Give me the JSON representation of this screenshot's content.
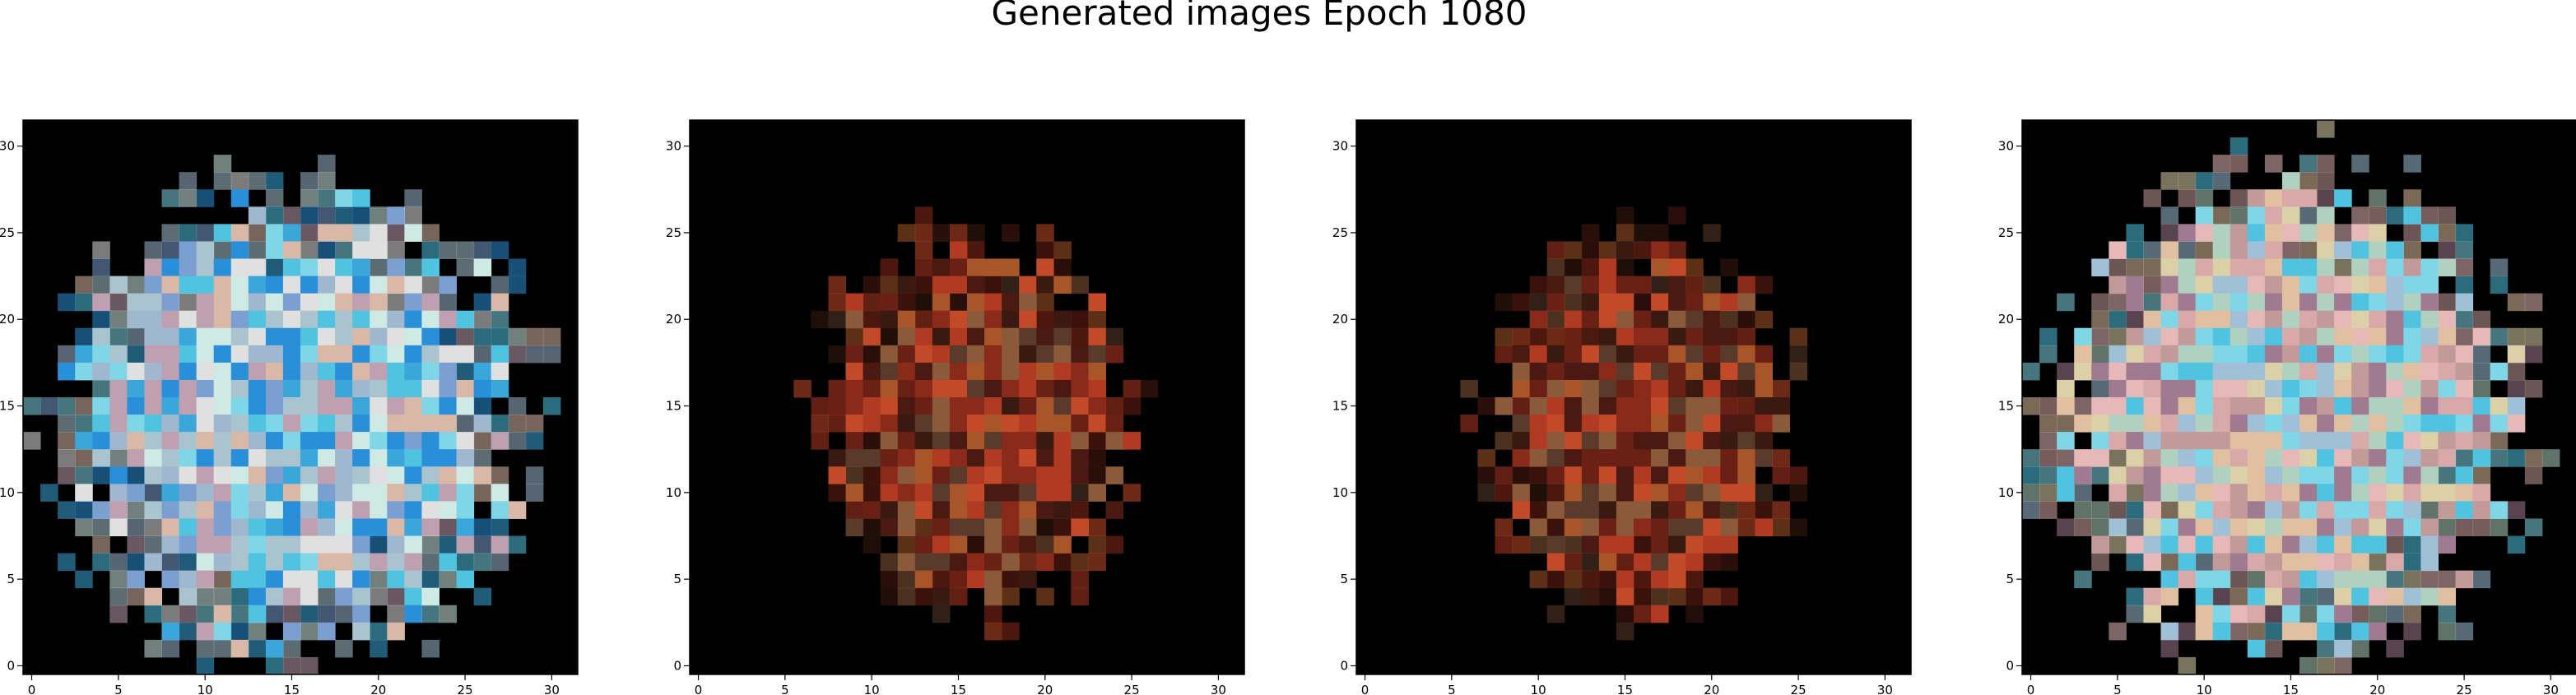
{
  "figure": {
    "title": "Generated images Epoch 1080"
  },
  "chart_data": [
    {
      "type": "heatmap",
      "title": "",
      "xlim": [
        -0.5,
        31.5
      ],
      "ylim": [
        31.5,
        -0.5
      ],
      "xticks": [
        0,
        5,
        10,
        15,
        20,
        25,
        30
      ],
      "yticks": [
        0,
        5,
        10,
        15,
        20,
        25,
        30
      ],
      "background": "#000000",
      "content_extent": {
        "x": [
          1,
          29
        ],
        "y": [
          3,
          31
        ]
      },
      "palette": [
        "#7fd6e6",
        "#a9c4cf",
        "#cfe9e4",
        "#4fc3e0",
        "#9fb8cf",
        "#d9b8a8",
        "#3aa6d9",
        "#e0e0e0",
        "#7a9fd0",
        "#bfa0b0",
        "#2a8fd9"
      ]
    },
    {
      "type": "heatmap",
      "title": "",
      "xlim": [
        -0.5,
        31.5
      ],
      "ylim": [
        31.5,
        -0.5
      ],
      "xticks": [
        0,
        5,
        10,
        15,
        20,
        25,
        30
      ],
      "yticks": [
        0,
        5,
        10,
        15,
        20,
        25,
        30
      ],
      "background": "#000000",
      "content_extent": {
        "x": [
          7,
          25
        ],
        "y": [
          6,
          28
        ]
      },
      "palette": [
        "#8a2a1a",
        "#6a2014",
        "#b03a22",
        "#4a1a12",
        "#a8552a",
        "#5a3a2a",
        "#c24a28",
        "#3a1a10",
        "#8a5a3a"
      ]
    },
    {
      "type": "heatmap",
      "title": "",
      "xlim": [
        -0.5,
        31.5
      ],
      "ylim": [
        31.5,
        -0.5
      ],
      "xticks": [
        0,
        5,
        10,
        15,
        20,
        25,
        30
      ],
      "yticks": [
        0,
        5,
        10,
        15,
        20,
        25,
        30
      ],
      "background": "#000000",
      "content_extent": {
        "x": [
          7,
          25
        ],
        "y": [
          6,
          28
        ]
      },
      "palette": [
        "#8a2a1a",
        "#6a2014",
        "#b03a22",
        "#4a1a12",
        "#a8552a",
        "#5a3a2a",
        "#c24a28",
        "#3a1a10",
        "#8a5a3a"
      ]
    },
    {
      "type": "heatmap",
      "title": "",
      "xlim": [
        -0.5,
        31.5
      ],
      "ylim": [
        31.5,
        -0.5
      ],
      "xticks": [
        0,
        5,
        10,
        15,
        20,
        25,
        30
      ],
      "yticks": [
        0,
        5,
        10,
        15,
        20,
        25,
        30
      ],
      "background": "#000000",
      "content_extent": {
        "x": [
          1,
          29
        ],
        "y": [
          2,
          31
        ]
      },
      "palette": [
        "#d9a8a8",
        "#9fc0d6",
        "#e0c0a0",
        "#7fd6e6",
        "#c29a9a",
        "#b0d0c0",
        "#e6b8b8",
        "#4fc3e0",
        "#a07a90",
        "#dcd0a8"
      ]
    }
  ]
}
